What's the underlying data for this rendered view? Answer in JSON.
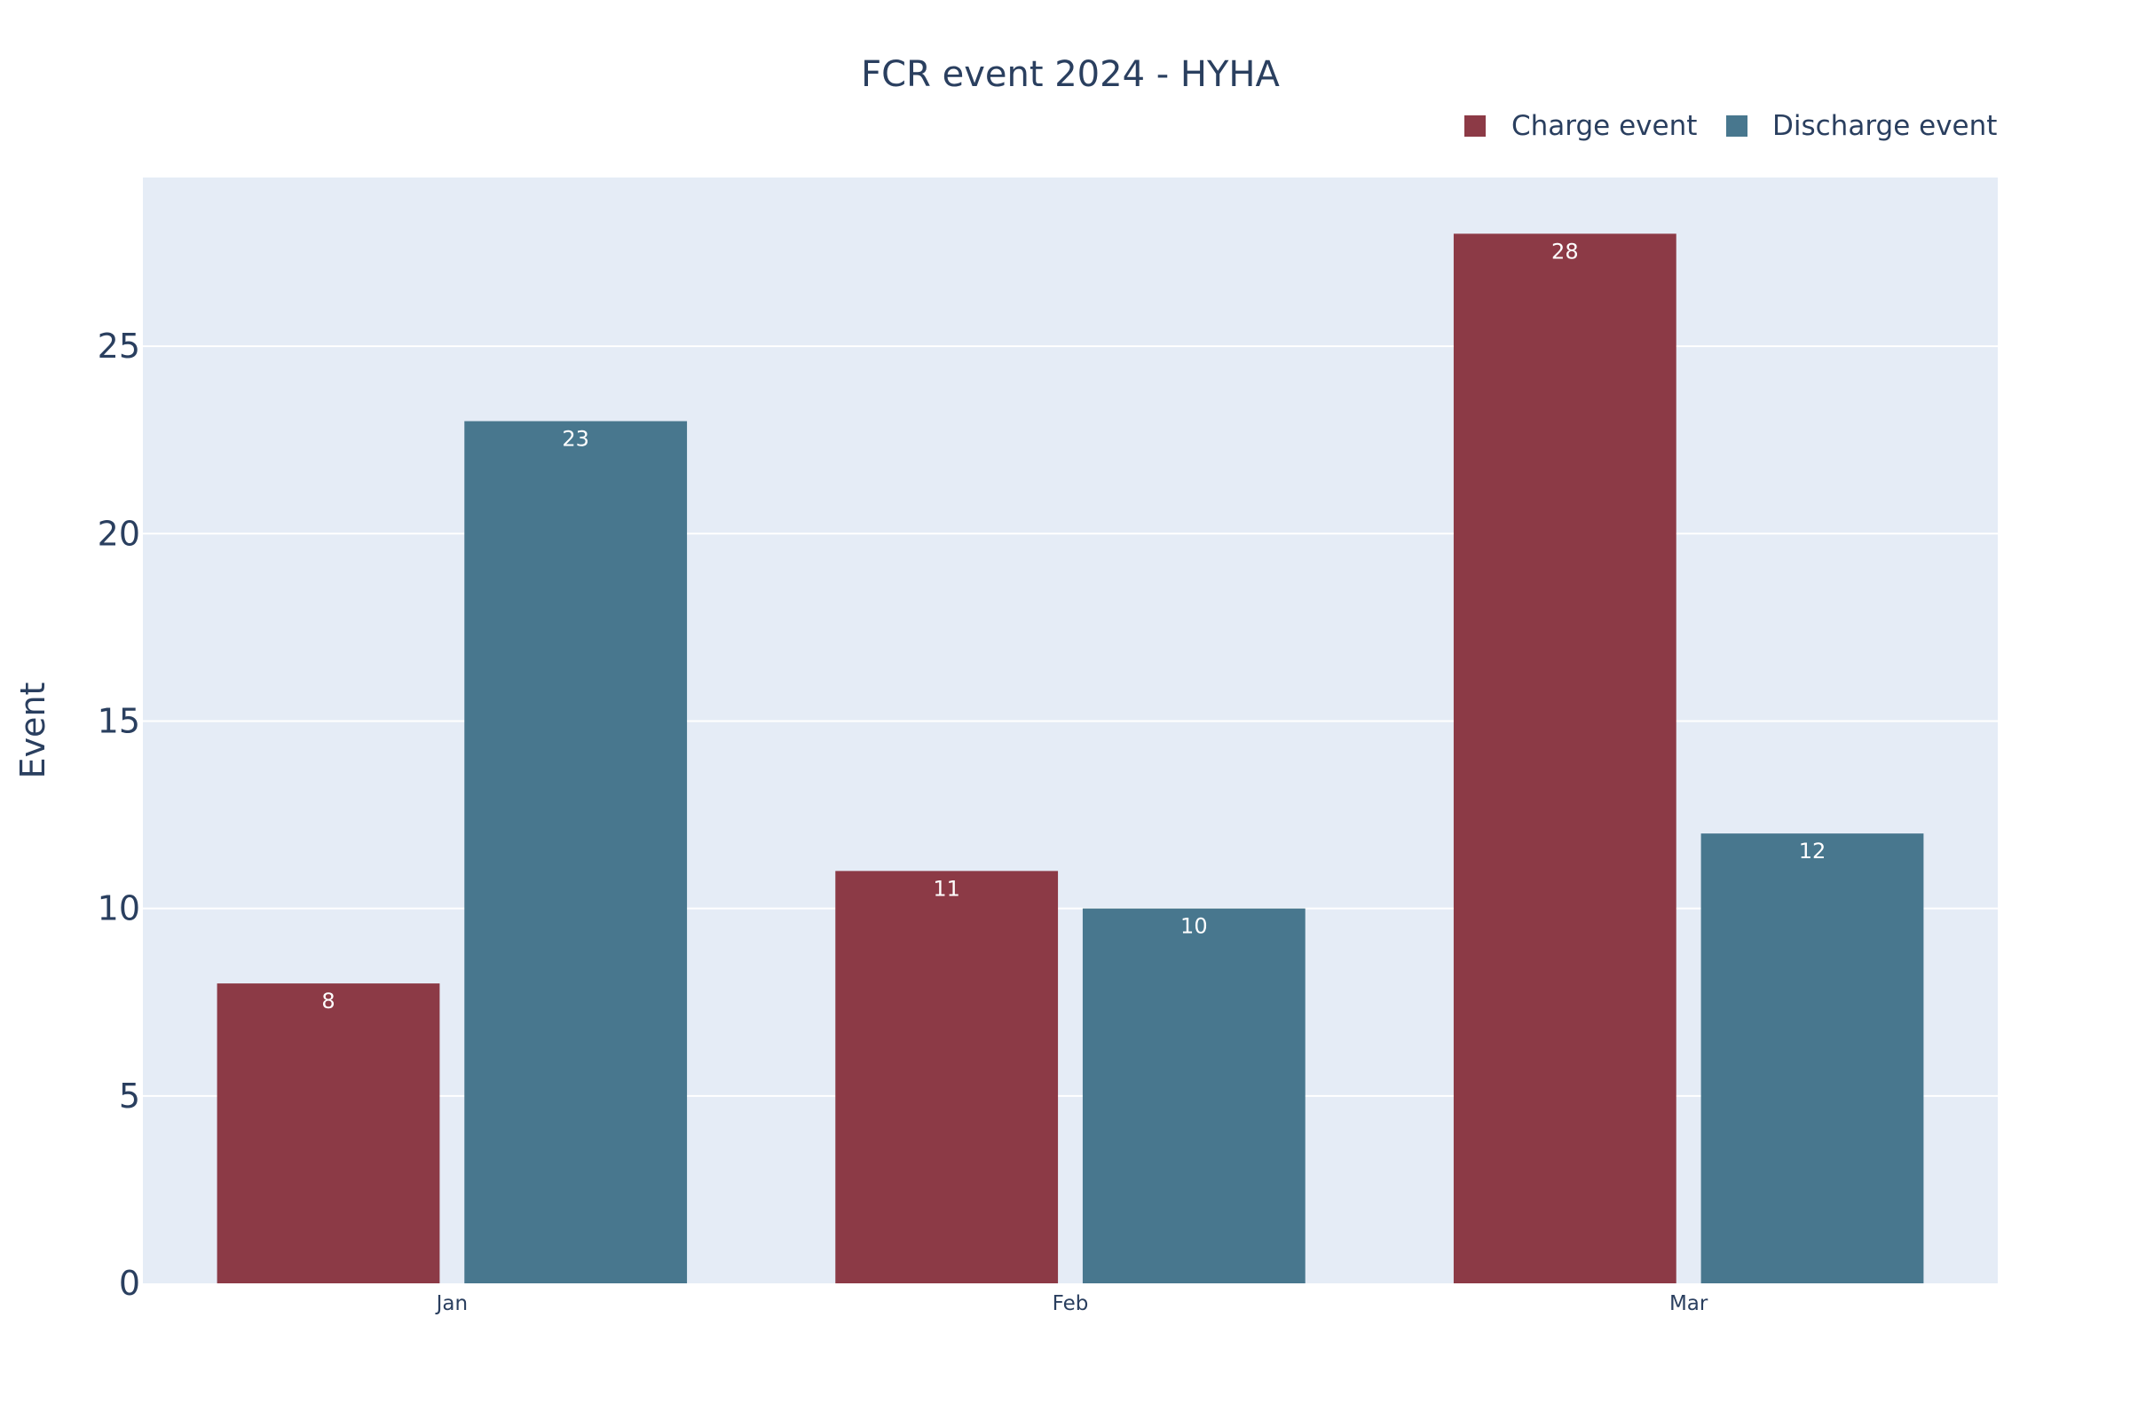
{
  "chart_data": {
    "type": "bar",
    "title": "FCR event 2024 - HYHA",
    "xlabel": "",
    "ylabel": "Event",
    "categories": [
      "Jan",
      "Feb",
      "Mar"
    ],
    "series": [
      {
        "name": "Charge event",
        "values": [
          8,
          11,
          28
        ],
        "color": "#8c3a46",
        "data_labels": [
          "8",
          "11",
          "28"
        ]
      },
      {
        "name": "Discharge event",
        "values": [
          23,
          10,
          12
        ],
        "color": "#48778e",
        "data_labels": [
          "23",
          "10",
          "12"
        ]
      }
    ],
    "ylim": [
      0,
      29.5
    ],
    "yticks": [
      0,
      5,
      10,
      15,
      20,
      25
    ],
    "ytick_labels": [
      "0",
      "5",
      "10",
      "15",
      "20",
      "25"
    ],
    "grid": true,
    "legend_position": "top-right",
    "plot_background": "#e5ecf6",
    "text_color": "#2a3f5f",
    "label_color": "#ffffff"
  }
}
